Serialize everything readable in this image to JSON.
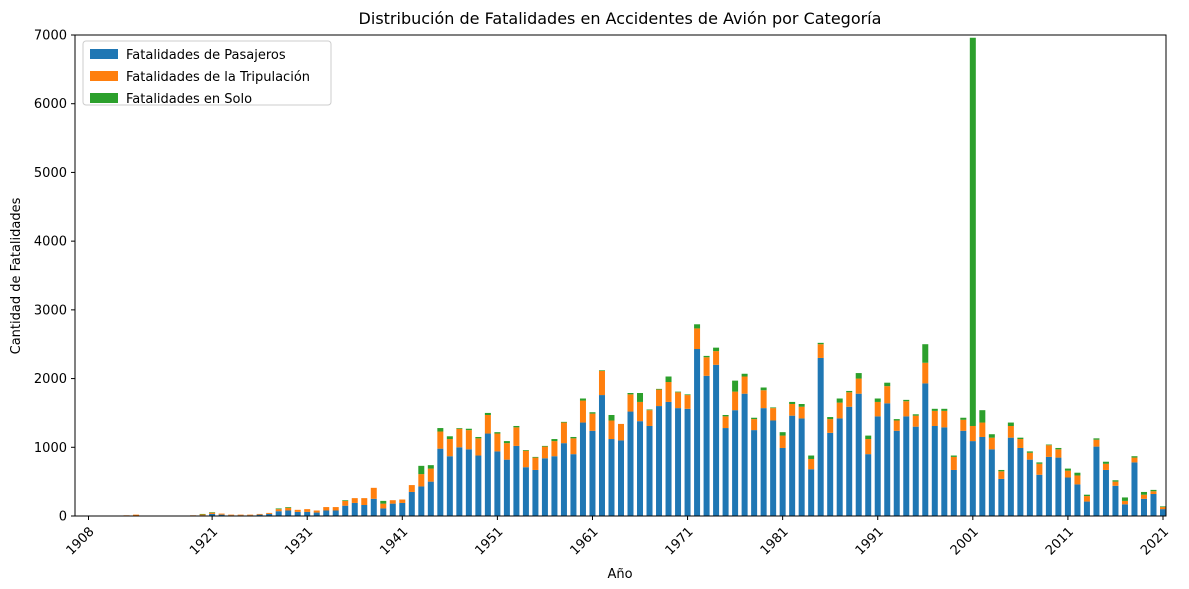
{
  "chart_data": {
    "type": "bar",
    "stacked": true,
    "title": "Distribución de Fatalidades en Accidentes de Avión por Categoría",
    "xlabel": "Año",
    "ylabel": "Cantidad de Fatalidades",
    "ylim": [
      0,
      7000
    ],
    "yticks": [
      "0",
      "1000",
      "2000",
      "3000",
      "4000",
      "5000",
      "6000",
      "7000"
    ],
    "xticks": [
      "1908",
      "1921",
      "1931",
      "1941",
      "1951",
      "1961",
      "1971",
      "1981",
      "1991",
      "2001",
      "2011",
      "2021"
    ],
    "legend_position": "top-left",
    "grid": false,
    "categories": [
      "1908",
      "1910",
      "1912",
      "1913",
      "1915",
      "1916",
      "1917",
      "1918",
      "1919",
      "1920",
      "1921",
      "1922",
      "1923",
      "1924",
      "1925",
      "1926",
      "1927",
      "1928",
      "1929",
      "1930",
      "1931",
      "1932",
      "1933",
      "1934",
      "1935",
      "1936",
      "1937",
      "1938",
      "1939",
      "1940",
      "1941",
      "1942",
      "1943",
      "1944",
      "1945",
      "1946",
      "1947",
      "1948",
      "1949",
      "1950",
      "1951",
      "1952",
      "1953",
      "1954",
      "1955",
      "1956",
      "1957",
      "1958",
      "1959",
      "1960",
      "1961",
      "1962",
      "1963",
      "1964",
      "1965",
      "1966",
      "1967",
      "1968",
      "1969",
      "1970",
      "1971",
      "1972",
      "1973",
      "1974",
      "1975",
      "1976",
      "1977",
      "1978",
      "1979",
      "1980",
      "1981",
      "1982",
      "1983",
      "1984",
      "1985",
      "1986",
      "1987",
      "1988",
      "1989",
      "1990",
      "1991",
      "1992",
      "1993",
      "1994",
      "1995",
      "1996",
      "1997",
      "1998",
      "1999",
      "2000",
      "2001",
      "2002",
      "2003",
      "2004",
      "2005",
      "2006",
      "2007",
      "2008",
      "2009",
      "2010",
      "2011",
      "2012",
      "2013",
      "2014",
      "2015",
      "2016",
      "2017",
      "2018",
      "2019",
      "2020",
      "2021"
    ],
    "series": [
      {
        "name": "Fatalidades de Pasajeros",
        "color": "#1f77b4",
        "values": [
          0,
          0,
          5,
          5,
          0,
          0,
          0,
          0,
          5,
          10,
          30,
          20,
          10,
          10,
          10,
          20,
          30,
          70,
          80,
          60,
          60,
          50,
          80,
          80,
          150,
          190,
          160,
          250,
          110,
          180,
          190,
          350,
          430,
          500,
          980,
          870,
          1000,
          970,
          880,
          1200,
          940,
          820,
          1020,
          710,
          670,
          840,
          870,
          1060,
          900,
          1360,
          1240,
          1760,
          1120,
          1100,
          1520,
          1380,
          1310,
          1600,
          1660,
          1570,
          1560,
          2430,
          2040,
          2200,
          1280,
          1540,
          1780,
          1250,
          1570,
          1390,
          990,
          1460,
          1420,
          680,
          2300,
          1210,
          1420,
          1590,
          1780,
          900,
          1450,
          1640,
          1240,
          1450,
          1300,
          1930,
          1310,
          1290,
          670,
          1240,
          1090,
          1150,
          970,
          540,
          1140,
          990,
          820,
          600,
          860,
          850,
          560,
          460,
          210,
          1010,
          670,
          440,
          170,
          780,
          250,
          320,
          100
        ]
      },
      {
        "name": "Fatalidades de la Tripulación",
        "color": "#ff7f0e",
        "values": [
          0,
          0,
          5,
          15,
          0,
          0,
          0,
          0,
          5,
          15,
          20,
          15,
          10,
          10,
          10,
          10,
          15,
          30,
          40,
          30,
          40,
          30,
          50,
          50,
          70,
          70,
          100,
          160,
          70,
          50,
          50,
          100,
          180,
          190,
          250,
          250,
          270,
          280,
          250,
          270,
          260,
          240,
          270,
          240,
          180,
          170,
          220,
          300,
          230,
          320,
          250,
          350,
          270,
          240,
          250,
          280,
          230,
          240,
          290,
          230,
          200,
          300,
          270,
          200,
          170,
          270,
          250,
          160,
          260,
          180,
          180,
          170,
          170,
          150,
          200,
          200,
          230,
          210,
          220,
          220,
          210,
          250,
          150,
          220,
          160,
          300,
          220,
          240,
          190,
          160,
          220,
          210,
          170,
          110,
          170,
          130,
          100,
          160,
          170,
          120,
          100,
          130,
          80,
          100,
          90,
          60,
          50,
          70,
          60,
          40,
          30
        ]
      },
      {
        "name": "Fatalidades en Solo",
        "color": "#2ca02c",
        "values": [
          0,
          0,
          0,
          0,
          0,
          0,
          0,
          0,
          0,
          5,
          5,
          0,
          0,
          0,
          0,
          0,
          0,
          10,
          10,
          0,
          0,
          0,
          0,
          0,
          10,
          0,
          0,
          0,
          40,
          0,
          0,
          0,
          120,
          50,
          50,
          40,
          10,
          20,
          20,
          30,
          20,
          30,
          20,
          10,
          10,
          10,
          30,
          10,
          20,
          30,
          20,
          10,
          80,
          0,
          20,
          130,
          10,
          10,
          80,
          10,
          10,
          60,
          20,
          50,
          20,
          160,
          40,
          20,
          40,
          10,
          50,
          30,
          40,
          50,
          20,
          30,
          60,
          20,
          80,
          50,
          50,
          50,
          20,
          20,
          20,
          270,
          30,
          30,
          20,
          30,
          5650,
          180,
          50,
          20,
          50,
          20,
          20,
          20,
          10,
          20,
          30,
          40,
          20,
          20,
          30,
          20,
          50,
          20,
          40,
          20,
          10
        ]
      }
    ]
  }
}
